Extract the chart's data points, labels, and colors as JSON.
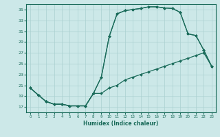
{
  "xlabel": "Humidex (Indice chaleur)",
  "bg_color": "#cce8e8",
  "line_color": "#1a6b5a",
  "grid_color": "#aad0d0",
  "ylim": [
    16.0,
    36.0
  ],
  "xlim": [
    -0.5,
    23.5
  ],
  "yticks": [
    17,
    19,
    21,
    23,
    25,
    27,
    29,
    31,
    33,
    35
  ],
  "xticks": [
    0,
    1,
    2,
    3,
    4,
    5,
    6,
    7,
    8,
    9,
    10,
    11,
    12,
    13,
    14,
    15,
    16,
    17,
    18,
    19,
    20,
    21,
    22,
    23
  ],
  "line1_x": [
    0,
    1,
    2,
    3,
    4,
    5,
    6,
    7,
    8,
    9,
    10,
    11,
    12,
    13,
    14,
    15,
    16,
    17,
    18,
    19,
    20,
    21,
    22,
    23
  ],
  "line1_y": [
    20.5,
    19.2,
    18.0,
    17.5,
    17.5,
    17.2,
    17.2,
    17.2,
    19.5,
    19.5,
    20.5,
    21.0,
    22.0,
    22.5,
    23.0,
    23.5,
    24.0,
    24.5,
    25.0,
    25.5,
    26.0,
    26.5,
    27.0,
    24.5
  ],
  "line2_x": [
    0,
    1,
    2,
    3,
    4,
    5,
    6,
    7,
    8,
    9,
    10,
    11,
    12,
    13,
    14,
    15,
    16,
    17,
    18,
    19,
    20,
    21,
    22,
    23
  ],
  "line2_y": [
    20.5,
    19.2,
    18.0,
    17.5,
    17.5,
    17.2,
    17.2,
    17.2,
    19.5,
    22.5,
    30.0,
    34.2,
    34.8,
    35.0,
    35.2,
    35.5,
    35.5,
    35.3,
    35.2,
    34.5,
    30.5,
    30.2,
    27.5,
    24.5
  ],
  "line3_x": [
    0,
    1,
    2,
    3,
    4,
    5,
    6,
    7,
    8,
    9,
    10,
    11,
    12,
    13,
    14,
    15,
    16,
    17,
    18,
    19,
    20,
    21,
    22,
    23
  ],
  "line3_y": [
    20.5,
    19.2,
    18.0,
    17.5,
    17.5,
    17.2,
    17.2,
    17.2,
    19.5,
    22.5,
    30.0,
    34.2,
    34.8,
    35.0,
    35.2,
    35.5,
    35.5,
    35.3,
    35.2,
    34.5,
    30.5,
    30.2,
    27.5,
    24.5
  ]
}
